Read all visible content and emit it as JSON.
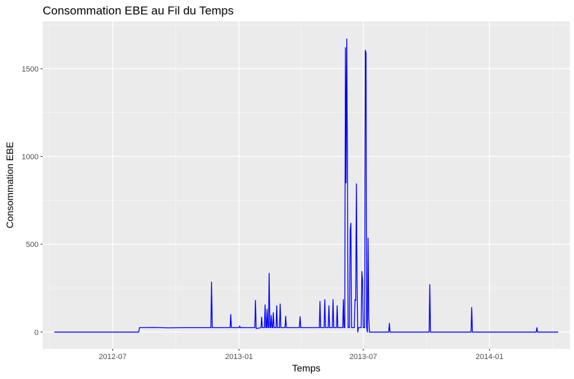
{
  "chart_data": {
    "type": "line",
    "title": "Consommation EBE au Fil du Temps",
    "xlabel": "Temps",
    "ylabel": "Consommation EBE",
    "x_ticks": [
      "2012-07",
      "2013-01",
      "2013-07",
      "2014-01"
    ],
    "y_ticks": [
      0,
      500,
      1000,
      1500
    ],
    "xlim": [
      "2012-03-21",
      "2014-04-28"
    ],
    "ylim": [
      -95,
      1770
    ],
    "grid": true,
    "legend": "none",
    "line_color": "#0000ff",
    "panel_background": "#ebebeb",
    "series": [
      {
        "points": [
          [
            "2012-04-07",
            0
          ],
          [
            "2012-08-08",
            0
          ],
          [
            "2012-08-09",
            25
          ],
          [
            "2012-08-30",
            26
          ],
          [
            "2012-09-20",
            24
          ],
          [
            "2012-10-15",
            25
          ],
          [
            "2012-11-09",
            25
          ],
          [
            "2012-11-21",
            25
          ],
          [
            "2012-11-22",
            285
          ],
          [
            "2012-11-23",
            25
          ],
          [
            "2012-12-19",
            25
          ],
          [
            "2012-12-20",
            100
          ],
          [
            "2012-12-21",
            25
          ],
          [
            "2013-01-01",
            25
          ],
          [
            "2013-01-02",
            35
          ],
          [
            "2013-01-03",
            25
          ],
          [
            "2013-01-24",
            25
          ],
          [
            "2013-01-25",
            180
          ],
          [
            "2013-01-26",
            20
          ],
          [
            "2013-02-02",
            25
          ],
          [
            "2013-02-03",
            85
          ],
          [
            "2013-02-04",
            25
          ],
          [
            "2013-02-07",
            25
          ],
          [
            "2013-02-08",
            155
          ],
          [
            "2013-02-09",
            25
          ],
          [
            "2013-02-10",
            25
          ],
          [
            "2013-02-11",
            130
          ],
          [
            "2013-02-12",
            25
          ],
          [
            "2013-02-13",
            25
          ],
          [
            "2013-02-14",
            335
          ],
          [
            "2013-02-15",
            25
          ],
          [
            "2013-02-16",
            25
          ],
          [
            "2013-02-17",
            95
          ],
          [
            "2013-02-18",
            25
          ],
          [
            "2013-02-19",
            25
          ],
          [
            "2013-02-20",
            110
          ],
          [
            "2013-02-21",
            25
          ],
          [
            "2013-02-24",
            25
          ],
          [
            "2013-02-25",
            150
          ],
          [
            "2013-02-26",
            25
          ],
          [
            "2013-03-01",
            25
          ],
          [
            "2013-03-02",
            160
          ],
          [
            "2013-03-03",
            25
          ],
          [
            "2013-03-09",
            25
          ],
          [
            "2013-03-10",
            90
          ],
          [
            "2013-03-11",
            25
          ],
          [
            "2013-03-30",
            25
          ],
          [
            "2013-03-31",
            88
          ],
          [
            "2013-04-01",
            25
          ],
          [
            "2013-04-28",
            25
          ],
          [
            "2013-04-29",
            175
          ],
          [
            "2013-04-30",
            25
          ],
          [
            "2013-05-05",
            25
          ],
          [
            "2013-05-06",
            185
          ],
          [
            "2013-05-07",
            25
          ],
          [
            "2013-05-11",
            25
          ],
          [
            "2013-05-12",
            150
          ],
          [
            "2013-05-13",
            25
          ],
          [
            "2013-05-17",
            25
          ],
          [
            "2013-05-18",
            185
          ],
          [
            "2013-05-19",
            25
          ],
          [
            "2013-05-23",
            25
          ],
          [
            "2013-05-24",
            150
          ],
          [
            "2013-05-25",
            25
          ],
          [
            "2013-06-01",
            25
          ],
          [
            "2013-06-02",
            185
          ],
          [
            "2013-06-03",
            25
          ],
          [
            "2013-06-04",
            25
          ],
          [
            "2013-06-05",
            1620
          ],
          [
            "2013-06-06",
            850
          ],
          [
            "2013-06-07",
            1670
          ],
          [
            "2013-06-08",
            920
          ],
          [
            "2013-06-09",
            25
          ],
          [
            "2013-06-11",
            25
          ],
          [
            "2013-06-12",
            580
          ],
          [
            "2013-06-13",
            620
          ],
          [
            "2013-06-14",
            25
          ],
          [
            "2013-06-18",
            25
          ],
          [
            "2013-06-19",
            185
          ],
          [
            "2013-06-20",
            180
          ],
          [
            "2013-06-21",
            845
          ],
          [
            "2013-06-22",
            300
          ],
          [
            "2013-06-23",
            0
          ],
          [
            "2013-06-24",
            25
          ],
          [
            "2013-06-28",
            25
          ],
          [
            "2013-06-29",
            345
          ],
          [
            "2013-06-30",
            295
          ],
          [
            "2013-07-01",
            25
          ],
          [
            "2013-07-03",
            25
          ],
          [
            "2013-07-04",
            1605
          ],
          [
            "2013-07-05",
            1590
          ],
          [
            "2013-07-06",
            25
          ],
          [
            "2013-07-07",
            0
          ],
          [
            "2013-07-08",
            535
          ],
          [
            "2013-07-09",
            85
          ],
          [
            "2013-07-10",
            0
          ],
          [
            "2013-08-07",
            0
          ],
          [
            "2013-08-08",
            50
          ],
          [
            "2013-08-09",
            0
          ],
          [
            "2013-10-05",
            0
          ],
          [
            "2013-10-06",
            270
          ],
          [
            "2013-10-07",
            0
          ],
          [
            "2013-12-05",
            0
          ],
          [
            "2013-12-06",
            140
          ],
          [
            "2013-12-07",
            0
          ],
          [
            "2014-03-10",
            0
          ],
          [
            "2014-03-11",
            25
          ],
          [
            "2014-03-12",
            0
          ],
          [
            "2014-04-11",
            0
          ]
        ]
      }
    ]
  }
}
